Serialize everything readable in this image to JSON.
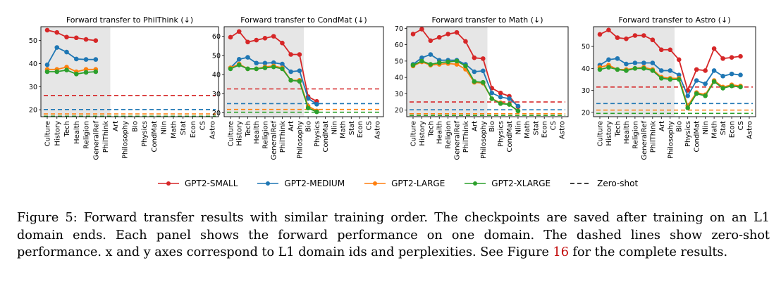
{
  "figure": {
    "legend": [
      {
        "label": "GPT2-SMALL",
        "color": "#d62728",
        "style": "solid"
      },
      {
        "label": "GPT2-MEDIUM",
        "color": "#1f77b4",
        "style": "solid"
      },
      {
        "label": "GPT2-LARGE",
        "color": "#ff7f0e",
        "style": "solid"
      },
      {
        "label": "GPT2-XLARGE",
        "color": "#2ca02c",
        "style": "solid"
      },
      {
        "label": "Zero-shot",
        "color": "#000000",
        "style": "dashed"
      }
    ],
    "caption": {
      "label": "Figure 5:",
      "text_before_ref": " Forward transfer results with similar training order. The checkpoints are saved after training on an L1 domain ends. Each panel shows the forward performance on one domain. The dashed lines show zero-shot performance. x and y axes correspond to L1 domain ids and perplexities. See Figure ",
      "ref": "16",
      "text_after_ref": " for the complete results."
    }
  },
  "chart_data": [
    {
      "type": "line",
      "title": "Forward transfer to PhilThink (↓)",
      "categories": [
        "Culture",
        "History",
        "Tech",
        "Health",
        "Religion",
        "GeneralRef",
        "PhilThink",
        "Art",
        "Philosophy",
        "Bio",
        "Physics",
        "CondMat",
        "Nlin",
        "Math",
        "Stat",
        "Econ",
        "CS",
        "Astro"
      ],
      "ylim": [
        17,
        56
      ],
      "yticks": [
        20,
        30,
        40,
        50
      ],
      "shaded_through": "PhilThink",
      "series": [
        {
          "name": "GPT2-SMALL",
          "values": [
            54.5,
            53.5,
            51.5,
            51.2,
            50.5,
            50.0,
            null,
            null,
            null,
            null,
            null,
            null,
            null,
            null,
            null,
            null,
            null,
            null
          ]
        },
        {
          "name": "GPT2-MEDIUM",
          "values": [
            39.5,
            47.0,
            45.0,
            42.0,
            41.8,
            41.8,
            null,
            null,
            null,
            null,
            null,
            null,
            null,
            null,
            null,
            null,
            null,
            null
          ]
        },
        {
          "name": "GPT2-LARGE",
          "values": [
            37.5,
            37.5,
            38.5,
            36.5,
            37.5,
            37.5,
            null,
            null,
            null,
            null,
            null,
            null,
            null,
            null,
            null,
            null,
            null,
            null
          ]
        },
        {
          "name": "GPT2-XLARGE",
          "values": [
            36.5,
            36.5,
            37.2,
            35.5,
            36.2,
            36.5,
            null,
            null,
            null,
            null,
            null,
            null,
            null,
            null,
            null,
            null,
            null,
            null
          ]
        }
      ],
      "zero_shot": {
        "GPT2-SMALL": 26.2,
        "GPT2-MEDIUM": 20.1,
        "GPT2-LARGE": 18.2,
        "GPT2-XLARGE": 17.2
      }
    },
    {
      "type": "line",
      "title": "Forward transfer to CondMat (↓)",
      "categories": [
        "Culture",
        "History",
        "Tech",
        "Health",
        "Religion",
        "GeneralRef",
        "PhilThink",
        "Art",
        "Philosophy",
        "Bio",
        "Physics",
        "CondMat",
        "Nlin",
        "Math",
        "Stat",
        "Econ",
        "CS",
        "Astro"
      ],
      "ylim": [
        18,
        65
      ],
      "yticks": [
        20,
        30,
        40,
        50,
        60
      ],
      "shaded_through": "Philosophy",
      "series": [
        {
          "name": "GPT2-SMALL",
          "values": [
            59.5,
            62.5,
            57.0,
            58.0,
            59.0,
            60.0,
            56.5,
            50.5,
            50.5,
            28.5,
            26.0,
            null,
            null,
            null,
            null,
            null,
            null,
            null
          ]
        },
        {
          "name": "GPT2-MEDIUM",
          "values": [
            43.5,
            48.0,
            49.0,
            46.0,
            46.0,
            46.2,
            45.5,
            41.5,
            42.0,
            27.5,
            24.5,
            null,
            null,
            null,
            null,
            null,
            null,
            null
          ]
        },
        {
          "name": "GPT2-LARGE",
          "values": [
            43.5,
            45.5,
            43.0,
            43.0,
            44.0,
            44.5,
            43.5,
            37.0,
            37.0,
            23.5,
            21.0,
            null,
            null,
            null,
            null,
            null,
            null,
            null
          ]
        },
        {
          "name": "GPT2-XLARGE",
          "values": [
            43.0,
            45.0,
            43.0,
            43.0,
            43.5,
            44.0,
            43.0,
            37.0,
            36.5,
            22.5,
            20.5,
            null,
            null,
            null,
            null,
            null,
            null,
            null
          ]
        }
      ],
      "zero_shot": {
        "GPT2-SMALL": 32.5,
        "GPT2-MEDIUM": 24.8,
        "GPT2-LARGE": 21.8,
        "GPT2-XLARGE": 20.3
      }
    },
    {
      "type": "line",
      "title": "Forward transfer to Math (↓)",
      "categories": [
        "Culture",
        "History",
        "Tech",
        "Health",
        "Religion",
        "GeneralRef",
        "PhilThink",
        "Art",
        "Philosophy",
        "Bio",
        "Physics",
        "CondMat",
        "Nlin",
        "Math",
        "Stat",
        "Econ",
        "CS",
        "Astro"
      ],
      "ylim": [
        16,
        71
      ],
      "yticks": [
        20,
        30,
        40,
        50,
        60,
        70
      ],
      "shaded_through": "Philosophy",
      "series": [
        {
          "name": "GPT2-SMALL",
          "values": [
            66.5,
            69.5,
            62.5,
            64.5,
            66.5,
            67.5,
            62.0,
            52.0,
            51.5,
            33.5,
            30.5,
            28.5,
            22.0,
            null,
            null,
            null,
            null,
            null
          ]
        },
        {
          "name": "GPT2-MEDIUM",
          "values": [
            48.0,
            52.0,
            54.0,
            50.5,
            50.5,
            50.5,
            48.0,
            43.5,
            44.0,
            30.5,
            28.0,
            27.0,
            22.5,
            null,
            null,
            null,
            null,
            null
          ]
        },
        {
          "name": "GPT2-LARGE",
          "values": [
            47.0,
            49.5,
            47.5,
            48.0,
            48.5,
            48.0,
            45.0,
            37.0,
            36.5,
            27.0,
            24.5,
            23.5,
            19.5,
            null,
            null,
            null,
            null,
            null
          ]
        },
        {
          "name": "GPT2-XLARGE",
          "values": [
            47.5,
            50.0,
            48.0,
            49.0,
            49.5,
            50.0,
            47.0,
            37.5,
            37.0,
            27.0,
            24.0,
            23.5,
            19.5,
            null,
            null,
            null,
            null,
            null
          ]
        }
      ],
      "zero_shot": {
        "GPT2-SMALL": 25.0,
        "GPT2-MEDIUM": 20.2,
        "GPT2-LARGE": 17.8,
        "GPT2-XLARGE": 16.8
      }
    },
    {
      "type": "line",
      "title": "Forward transfer to Astro (↓)",
      "categories": [
        "Culture",
        "History",
        "Tech",
        "Health",
        "Religion",
        "GeneralRef",
        "PhilThink",
        "Art",
        "Philosophy",
        "Bio",
        "Physics",
        "CondMat",
        "Nlin",
        "Math",
        "Stat",
        "Econ",
        "CS",
        "Astro"
      ],
      "ylim": [
        18,
        59
      ],
      "yticks": [
        20,
        30,
        40,
        50
      ],
      "shaded_through": "Philosophy",
      "series": [
        {
          "name": "GPT2-SMALL",
          "values": [
            55.5,
            57.5,
            54.0,
            53.5,
            55.0,
            55.0,
            53.0,
            48.5,
            48.5,
            44.0,
            30.0,
            39.5,
            39.0,
            49.0,
            44.5,
            45.0,
            45.5,
            null
          ]
        },
        {
          "name": "GPT2-MEDIUM",
          "values": [
            41.5,
            44.0,
            44.5,
            42.0,
            42.5,
            42.5,
            42.5,
            39.0,
            39.0,
            37.0,
            27.5,
            34.5,
            33.0,
            39.0,
            36.5,
            37.5,
            37.0,
            null
          ]
        },
        {
          "name": "GPT2-LARGE",
          "values": [
            40.5,
            41.5,
            39.5,
            39.5,
            40.0,
            40.5,
            39.5,
            36.0,
            35.5,
            35.5,
            23.0,
            29.0,
            28.0,
            34.5,
            31.5,
            32.5,
            32.0,
            null
          ]
        },
        {
          "name": "GPT2-XLARGE",
          "values": [
            39.5,
            40.5,
            39.5,
            39.0,
            40.0,
            40.0,
            39.0,
            35.5,
            35.0,
            35.0,
            22.0,
            28.5,
            27.5,
            34.0,
            31.0,
            32.0,
            31.5,
            null
          ]
        }
      ],
      "zero_shot": {
        "GPT2-SMALL": 31.5,
        "GPT2-MEDIUM": 24.0,
        "GPT2-LARGE": 21.0,
        "GPT2-XLARGE": 19.5
      }
    }
  ]
}
